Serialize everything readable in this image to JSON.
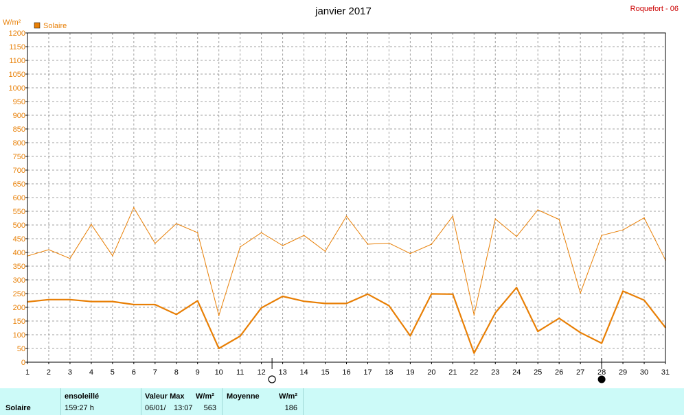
{
  "header": {
    "title": "janvier 2017",
    "station": "Roquefort - 06",
    "unit": "W/m²",
    "legend_label": "Solaire"
  },
  "colors": {
    "series": "#e87f05",
    "axis_text": "#e87f05",
    "grid": "#a0a0a0",
    "summary_bg": "#ccfaf8",
    "station": "#cc0000"
  },
  "chart_data": {
    "type": "line",
    "title": "janvier 2017",
    "ylabel": "W/m²",
    "ylim": [
      0,
      1200
    ],
    "yticks": [
      0,
      50,
      100,
      150,
      200,
      250,
      300,
      350,
      400,
      450,
      500,
      550,
      600,
      650,
      700,
      750,
      800,
      850,
      900,
      950,
      1000,
      1050,
      1100,
      1150,
      1200
    ],
    "x": [
      1,
      2,
      3,
      4,
      5,
      6,
      7,
      8,
      9,
      10,
      11,
      12,
      13,
      14,
      15,
      16,
      17,
      18,
      19,
      20,
      21,
      22,
      23,
      24,
      25,
      26,
      27,
      28,
      29,
      30,
      31
    ],
    "grid": true,
    "legend_position": "top-left",
    "series": [
      {
        "name": "Solaire",
        "style": "max",
        "values": [
          387,
          410,
          378,
          502,
          388,
          563,
          433,
          505,
          472,
          170,
          420,
          472,
          425,
          462,
          404,
          532,
          430,
          434,
          396,
          430,
          532,
          172,
          522,
          458,
          555,
          520,
          252,
          462,
          482,
          526,
          372
        ]
      },
      {
        "style": "mean",
        "values": [
          220,
          228,
          228,
          221,
          221,
          210,
          210,
          174,
          224,
          50,
          95,
          198,
          240,
          222,
          214,
          214,
          248,
          206,
          96,
          249,
          248,
          33,
          180,
          272,
          112,
          160,
          108,
          69,
          259,
          226,
          126
        ]
      }
    ],
    "moon_markers": [
      {
        "day": 12,
        "phase": "full-moon"
      },
      {
        "day": 28,
        "phase": "new-moon"
      }
    ]
  },
  "summary": {
    "row_label": "Solaire",
    "sun_header": "ensoleillé",
    "sun_value": "159:27 h",
    "max_header": "Valeur Max",
    "max_unit": "W/m²",
    "max_date": "06/01/",
    "max_time": "13:07",
    "max_value": "563",
    "mean_header": "Moyenne",
    "mean_unit": "W/m²",
    "mean_value": "186"
  }
}
